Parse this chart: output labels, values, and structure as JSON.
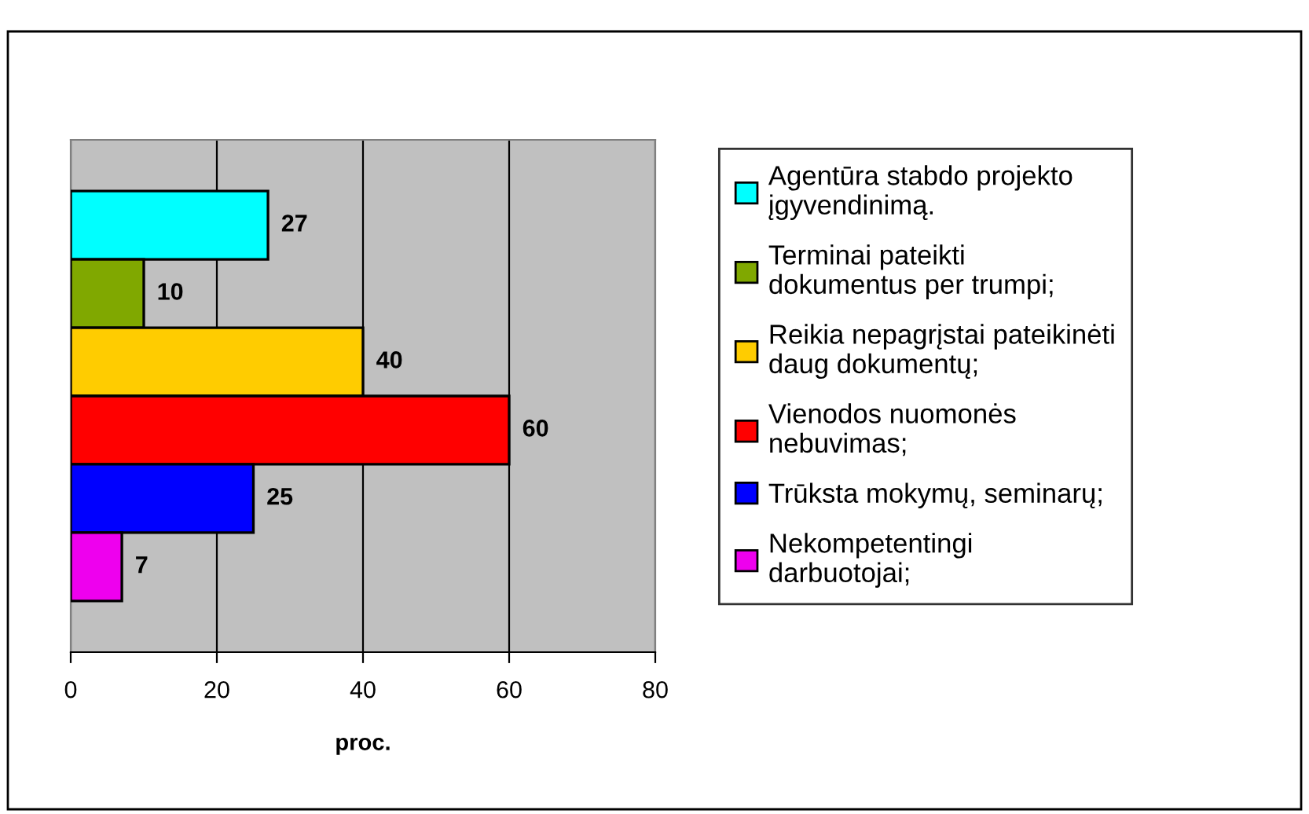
{
  "chart_data": {
    "type": "bar",
    "orientation": "horizontal",
    "xlabel": "proc.",
    "categories": [
      null,
      null,
      null,
      null,
      null,
      null
    ],
    "series": [
      {
        "name": "Agentūra stabdo projekto\nįgyvendinimą.",
        "color": "#00ffff",
        "values": [
          27,
          null,
          null,
          null,
          null,
          null
        ]
      },
      {
        "name": "Terminai pateikti\ndokumentus per trumpi;",
        "color": "#80a800",
        "values": [
          null,
          10,
          null,
          null,
          null,
          null
        ]
      },
      {
        "name": "Reikia nepagrįstai pateikinėti\ndaug dokumentų;",
        "color": "#ffcc00",
        "values": [
          null,
          null,
          40,
          null,
          null,
          null
        ]
      },
      {
        "name": "Vienodos nuomonės\nnebuvimas;",
        "color": "#ff0000",
        "values": [
          null,
          null,
          null,
          60,
          null,
          null
        ]
      },
      {
        "name": "Trūksta mokymų, seminarų;",
        "color": "#0000ff",
        "values": [
          null,
          null,
          null,
          null,
          25,
          null
        ]
      },
      {
        "name": "Nekompetentingi\ndarbuotojai;",
        "color": "#ee00ee",
        "values": [
          null,
          null,
          null,
          null,
          null,
          7
        ]
      }
    ],
    "xlim": [
      0,
      80
    ],
    "xticks": [
      0,
      20,
      40,
      60,
      80
    ],
    "grid": "x",
    "legend": "right",
    "data_labels": true,
    "tick_labels": "x"
  }
}
